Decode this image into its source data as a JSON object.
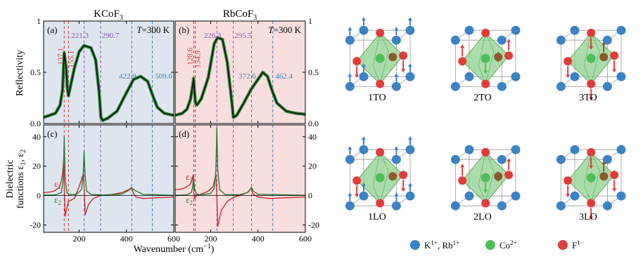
{
  "colors": {
    "panel_blue": "#dde6ee",
    "panel_pink": "#f9dede",
    "data_green": "#2e8b3a",
    "fit_black": "#111111",
    "epsilon1": "#d02a35",
    "epsilon2": "#2e7d3a",
    "label_purple": "#8a55b8",
    "label_blue": "#3f7fb8",
    "label_red": "#d23a3a",
    "atom_k": "#3c82c6",
    "atom_co": "#4cbf5a",
    "atom_f": "#e03c3c",
    "atom_co_disp": "#8b5a2b",
    "octahedron": "#8fd08f"
  },
  "figure": {
    "xlabel": "Wavenumber (cm⁻¹)",
    "ylabel_top": "Reflectivity",
    "ylabel_bottom_1": "Dielectric",
    "ylabel_bottom_2": "functions ε₁, ε₂"
  },
  "legend": {
    "k_label": "K¹⁺, Rb¹⁺",
    "co_label": "Co²⁺",
    "f_label": "F¹⁻"
  },
  "modes": [
    "1TO",
    "2TO",
    "3TO",
    "1LO",
    "2LO",
    "3LO"
  ],
  "chart_data": [
    {
      "type": "line",
      "panel": "(a)",
      "title": "KCoF₃",
      "annotation": "T=300 K",
      "ylabel": "Reflectivity",
      "xlim": [
        50,
        600
      ],
      "ylim": [
        0,
        1.0
      ],
      "xticks": [
        200,
        400,
        600
      ],
      "yticks_left": [
        0.0,
        0.5,
        1.0
      ],
      "series": [
        {
          "role": "data",
          "x": [
            50,
            100,
            120,
            130,
            137,
            145,
            150,
            155,
            165,
            180,
            200,
            220,
            250,
            270,
            285,
            292,
            300,
            320,
            360,
            400,
            430,
            460,
            490,
            510,
            530,
            560,
            600
          ],
          "y": [
            0.06,
            0.1,
            0.18,
            0.33,
            0.69,
            0.55,
            0.35,
            0.27,
            0.38,
            0.54,
            0.7,
            0.76,
            0.74,
            0.62,
            0.3,
            0.06,
            0.03,
            0.05,
            0.12,
            0.3,
            0.43,
            0.46,
            0.41,
            0.28,
            0.16,
            0.1,
            0.08
          ]
        }
      ],
      "to_labels": [
        {
          "value": "137.1",
          "x": 137.1,
          "color": "#d23a3a"
        },
        {
          "value": "155.1",
          "x": 155.1,
          "color": "#d23a3a"
        },
        {
          "value": "221.3",
          "x": 221.3,
          "color": "#8a55b8"
        },
        {
          "value": "290.7",
          "x": 290.7,
          "color": "#8a55b8"
        },
        {
          "value": "422.9",
          "x": 422.9,
          "color": "#3f7fb8"
        },
        {
          "value": "509.6",
          "x": 509.6,
          "color": "#3f7fb8"
        }
      ]
    },
    {
      "type": "line",
      "panel": "(b)",
      "title": "RbCoF₃",
      "annotation": "T=300 K",
      "xlim": [
        50,
        600
      ],
      "ylim": [
        0,
        1.0
      ],
      "xticks": [
        200,
        400,
        600
      ],
      "yticks_right": [
        0.0,
        0.5,
        1.0
      ],
      "series": [
        {
          "role": "data",
          "x": [
            50,
            80,
            100,
            115,
            122,
            128,
            132,
            136,
            142,
            160,
            190,
            215,
            230,
            250,
            270,
            290,
            296,
            310,
            340,
            370,
            400,
            420,
            440,
            460,
            480,
            520,
            560,
            600
          ],
          "y": [
            0.08,
            0.1,
            0.14,
            0.24,
            0.34,
            0.44,
            0.3,
            0.2,
            0.18,
            0.24,
            0.45,
            0.78,
            0.84,
            0.82,
            0.6,
            0.2,
            0.06,
            0.08,
            0.2,
            0.33,
            0.43,
            0.5,
            0.46,
            0.32,
            0.2,
            0.12,
            0.1,
            0.09
          ]
        }
      ],
      "to_labels": [
        {
          "value": "128.6",
          "x": 128.6,
          "color": "#d23a3a"
        },
        {
          "value": "134.9",
          "x": 134.9,
          "color": "#d23a3a"
        },
        {
          "value": "226.3",
          "x": 226.3,
          "color": "#8a55b8"
        },
        {
          "value": "295.5",
          "x": 295.5,
          "color": "#8a55b8"
        },
        {
          "value": "372.6",
          "x": 372.6,
          "color": "#3f7fb8"
        },
        {
          "value": "462.4",
          "x": 462.4,
          "color": "#3f7fb8"
        }
      ]
    },
    {
      "type": "line",
      "panel": "(c)",
      "xlabel": "Wavenumber (cm⁻¹)",
      "ylabel": "Dielectric functions ε₁, ε₂",
      "xlim": [
        50,
        600
      ],
      "ylim": [
        -25,
        48
      ],
      "xticks": [
        200,
        400,
        600
      ],
      "yticks_left": [
        -20,
        0,
        20,
        40
      ],
      "series": [
        {
          "name": "ε₁",
          "x": [
            50,
            80,
            100,
            115,
            125,
            130,
            135,
            138,
            141,
            146,
            155,
            180,
            200,
            212,
            218,
            222,
            226,
            240,
            260,
            290,
            330,
            380,
            410,
            422,
            428,
            440,
            470,
            530,
            600
          ],
          "y": [
            2,
            2.5,
            3.5,
            5.5,
            10,
            15,
            24,
            2,
            -14,
            -10,
            -4,
            -2,
            6,
            12,
            15,
            2,
            -13,
            -6,
            -2,
            0,
            0.5,
            2,
            4,
            5.5,
            2,
            -1,
            -2,
            -1.5,
            -1
          ]
        },
        {
          "name": "ε₂",
          "x": [
            50,
            100,
            125,
            133,
            137,
            141,
            148,
            160,
            190,
            210,
            217,
            221,
            225,
            232,
            250,
            300,
            380,
            410,
            423,
            436,
            470,
            600
          ],
          "y": [
            0.2,
            0.5,
            2,
            12,
            40,
            12,
            2,
            0.6,
            1,
            4,
            14,
            30,
            14,
            3,
            0.8,
            0.3,
            1,
            3.5,
            5,
            3.5,
            0.8,
            0.2
          ]
        }
      ],
      "labels": [
        "ε₁",
        "ε₂"
      ]
    },
    {
      "type": "line",
      "panel": "(d)",
      "xlabel": "Wavenumber (cm⁻¹)",
      "xlim": [
        50,
        600
      ],
      "ylim": [
        -25,
        48
      ],
      "xticks": [
        200,
        400,
        600
      ],
      "yticks_right": [
        -20,
        0,
        20,
        40
      ],
      "series": [
        {
          "name": "ε₁",
          "x": [
            50,
            80,
            100,
            115,
            122,
            126,
            129,
            132,
            140,
            160,
            190,
            210,
            222,
            226,
            230,
            245,
            270,
            300,
            340,
            360,
            368,
            372,
            378,
            400,
            450,
            520,
            600
          ],
          "y": [
            4,
            4.5,
            6,
            8,
            11,
            14,
            1,
            -2,
            0,
            1,
            3,
            6,
            14,
            0,
            -21,
            -10,
            -4,
            -1,
            1,
            2.5,
            4.5,
            5.5,
            1,
            -1,
            -2,
            -1.5,
            -1
          ]
        },
        {
          "name": "ε₂",
          "x": [
            50,
            100,
            118,
            124,
            128,
            132,
            140,
            160,
            200,
            215,
            222,
            226,
            230,
            238,
            260,
            320,
            355,
            366,
            373,
            380,
            400,
            600
          ],
          "y": [
            0.2,
            0.5,
            2,
            6,
            13,
            4,
            1,
            0.5,
            1.5,
            5,
            18,
            46,
            18,
            4,
            0.8,
            0.5,
            2,
            4,
            5.5,
            3,
            0.8,
            0.2
          ]
        }
      ],
      "labels": [
        "ε₁",
        "ε₂"
      ]
    }
  ]
}
